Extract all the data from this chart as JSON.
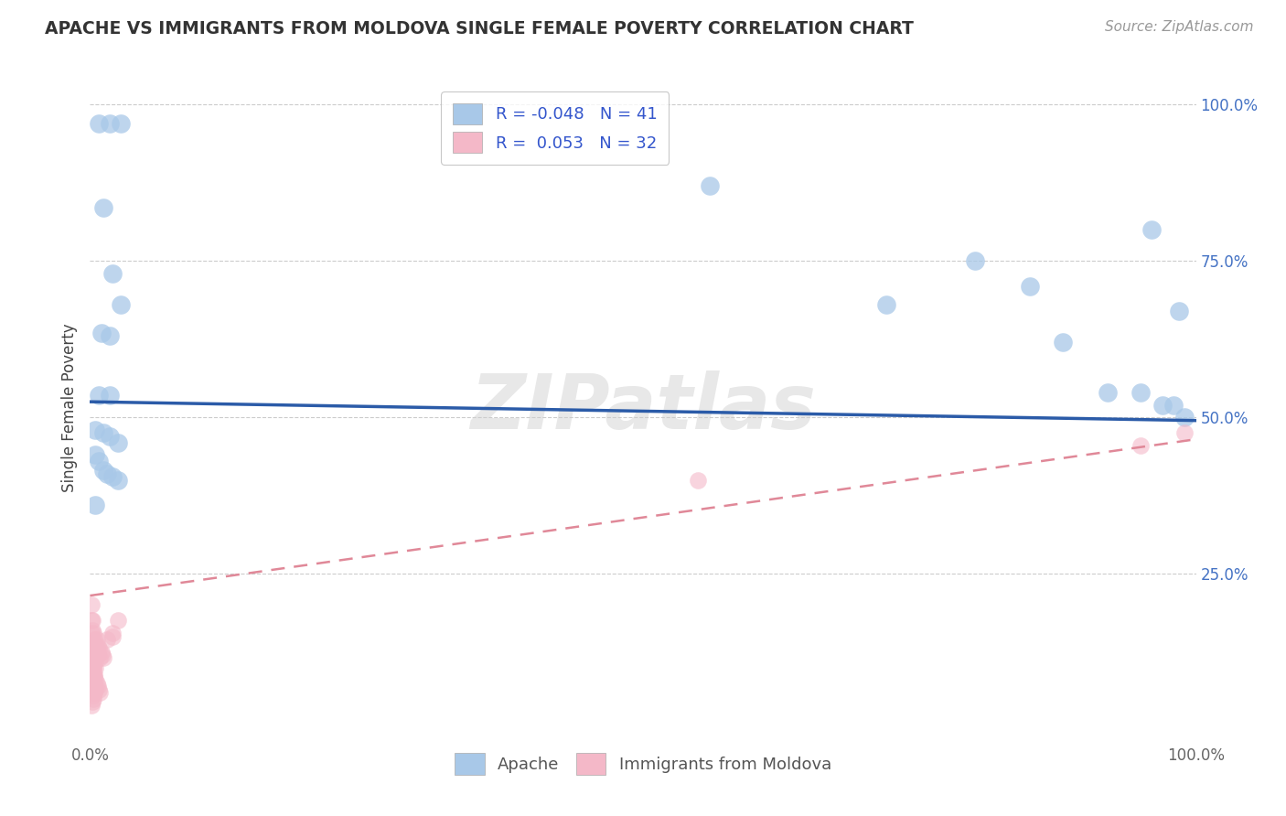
{
  "title": "APACHE VS IMMIGRANTS FROM MOLDOVA SINGLE FEMALE POVERTY CORRELATION CHART",
  "source": "Source: ZipAtlas.com",
  "ylabel": "Single Female Poverty",
  "background_color": "#ffffff",
  "apache_color": "#A8C8E8",
  "moldova_color": "#F4B8C8",
  "apache_line_color": "#2B5BA8",
  "moldova_line_color": "#E08898",
  "apache_R": -0.048,
  "apache_N": 41,
  "moldova_R": 0.053,
  "moldova_N": 32,
  "watermark": "ZIPatlas",
  "apache_x": [
    0.008,
    0.018,
    0.028,
    0.012,
    0.02,
    0.028,
    0.01,
    0.018,
    0.008,
    0.018,
    0.005,
    0.012,
    0.018,
    0.025,
    0.005,
    0.008,
    0.012,
    0.015,
    0.02,
    0.025,
    0.005,
    0.56,
    0.72,
    0.8,
    0.85,
    0.88,
    0.92,
    0.95,
    0.96,
    0.97,
    0.98,
    0.985,
    0.99
  ],
  "apache_y": [
    0.97,
    0.97,
    0.97,
    0.835,
    0.73,
    0.68,
    0.635,
    0.63,
    0.535,
    0.535,
    0.48,
    0.475,
    0.47,
    0.46,
    0.44,
    0.43,
    0.415,
    0.41,
    0.405,
    0.4,
    0.36,
    0.87,
    0.68,
    0.75,
    0.71,
    0.62,
    0.54,
    0.54,
    0.8,
    0.52,
    0.52,
    0.67,
    0.5
  ],
  "moldova_x": [
    0.001,
    0.001,
    0.001,
    0.002,
    0.002,
    0.002,
    0.002,
    0.003,
    0.003,
    0.003,
    0.003,
    0.003,
    0.003,
    0.004,
    0.004,
    0.004,
    0.005,
    0.005,
    0.005,
    0.006,
    0.006,
    0.007,
    0.007,
    0.008,
    0.009,
    0.01,
    0.011,
    0.012,
    0.02,
    0.55,
    0.95,
    0.99
  ],
  "moldova_y": [
    0.2,
    0.175,
    0.155,
    0.175,
    0.16,
    0.14,
    0.12,
    0.155,
    0.135,
    0.125,
    0.115,
    0.1,
    0.09,
    0.145,
    0.13,
    0.115,
    0.125,
    0.11,
    0.1,
    0.145,
    0.13,
    0.135,
    0.12,
    0.13,
    0.115,
    0.125,
    0.12,
    0.115,
    0.155,
    0.4,
    0.455,
    0.475
  ],
  "moldova_extra_x": [
    0.002,
    0.002,
    0.003,
    0.003,
    0.003,
    0.004,
    0.004,
    0.005,
    0.001,
    0.001,
    0.002,
    0.003,
    0.004,
    0.005,
    0.006,
    0.007,
    0.008,
    0.009,
    0.002,
    0.003,
    0.004,
    0.001,
    0.001,
    0.002,
    0.015,
    0.02,
    0.025,
    0.003,
    0.002,
    0.001
  ],
  "moldova_extra_y": [
    0.085,
    0.07,
    0.08,
    0.065,
    0.055,
    0.075,
    0.06,
    0.065,
    0.095,
    0.085,
    0.095,
    0.09,
    0.085,
    0.08,
    0.075,
    0.07,
    0.065,
    0.06,
    0.105,
    0.1,
    0.09,
    0.11,
    0.1,
    0.115,
    0.145,
    0.15,
    0.175,
    0.05,
    0.045,
    0.04
  ],
  "apache_line_y": [
    0.525,
    0.495
  ],
  "moldova_line_y": [
    0.215,
    0.465
  ],
  "yticks": [
    0.0,
    0.25,
    0.5,
    0.75,
    1.0
  ],
  "ytick_labels_right": [
    "",
    "25.0%",
    "50.0%",
    "75.0%",
    "100.0%"
  ],
  "xlim": [
    0.0,
    1.0
  ],
  "ylim": [
    -0.02,
    1.05
  ]
}
